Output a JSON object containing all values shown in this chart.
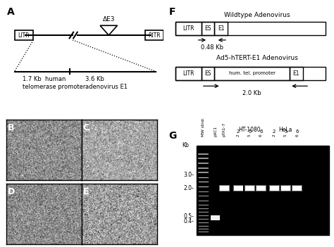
{
  "panel_A_label": "A",
  "panel_F_label": "F",
  "panel_B_label": "B",
  "panel_C_label": "C",
  "panel_D_label": "D",
  "panel_E_label": "E",
  "panel_G_label": "G",
  "wt_title": "Wildtype Adenovirus",
  "ad5_title": "Ad5-hTERT-E1 Adenovirus",
  "wt_kb": "0.48 Kb",
  "ad5_kb": "2.0 Kb",
  "litr_label": "LITR",
  "ritr_label": "RITR",
  "de3_label": "ΔE3",
  "kb_label1": "1.7 Kb  human",
  "kb_label2": "telomerase promoter",
  "kb_label3": "3.6 Kb",
  "kb_label4": "adenovirus E1",
  "gel_lane_labels": [
    "MW stnd.",
    "pXC1",
    "pTA1-7",
    "2",
    "5",
    "6",
    "2",
    "5",
    "6"
  ],
  "kb_markers": [
    "3.0-",
    "2.0-",
    "0.5-",
    "0.4-"
  ],
  "kb_marker_label": "Kb",
  "ht1080_label": "HT-1080",
  "hela_label": "HeLa",
  "lane_nums_ht": [
    "2",
    "5",
    "6"
  ],
  "lane_nums_hela": [
    "2",
    "5",
    "6"
  ]
}
